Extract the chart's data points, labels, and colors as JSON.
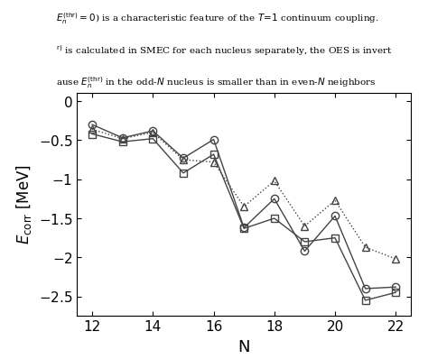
{
  "title": "",
  "xlabel": "N",
  "ylabel": "$E_{\\mathrm{corr}}$\\ [MeV]",
  "xlim": [
    11.5,
    22.5
  ],
  "ylim": [
    -2.75,
    0.1
  ],
  "yticks": [
    0,
    -0.5,
    -1.0,
    -1.5,
    -2.0,
    -2.5
  ],
  "ytick_labels": [
    "$0$",
    "$-0.5$",
    "$-1$",
    "$-1.5$",
    "$-2$",
    "$-2.5$"
  ],
  "xticks": [
    12,
    14,
    16,
    18,
    20,
    22
  ],
  "series_circle": {
    "x": [
      12,
      13,
      14,
      15,
      16,
      17,
      18,
      19,
      20,
      21,
      22
    ],
    "y": [
      -0.3,
      -0.47,
      -0.38,
      -0.73,
      -0.49,
      -1.62,
      -1.25,
      -1.92,
      -1.47,
      -2.4,
      -2.38
    ],
    "marker": "o",
    "linestyle": "-",
    "color": "#444444",
    "markersize": 6,
    "linewidth": 1.0,
    "fillstyle": "none"
  },
  "series_square": {
    "x": [
      12,
      13,
      14,
      15,
      16,
      17,
      18,
      19,
      20,
      21,
      22
    ],
    "y": [
      -0.42,
      -0.52,
      -0.48,
      -0.92,
      -0.68,
      -1.63,
      -1.5,
      -1.8,
      -1.75,
      -2.55,
      -2.45
    ],
    "marker": "s",
    "linestyle": "-",
    "color": "#444444",
    "markersize": 6,
    "linewidth": 1.0,
    "fillstyle": "none"
  },
  "series_triangle": {
    "x": [
      12,
      13,
      14,
      15,
      16,
      17,
      18,
      19,
      20,
      21,
      22
    ],
    "y": [
      -0.36,
      -0.48,
      -0.4,
      -0.75,
      -0.78,
      -1.35,
      -1.02,
      -1.6,
      -1.27,
      -1.87,
      -2.02
    ],
    "marker": "^",
    "linestyle": ":",
    "color": "#444444",
    "markersize": 6,
    "linewidth": 1.0,
    "fillstyle": "none"
  },
  "background_color": "#ffffff",
  "top_text_lines": [
    "$E_n^{\\rm (thr)} = 0$) is a characteristic feature of the $T\\!=\\!1$ continuum coupling.",
    "$^{\\rm r)}$ is calculated in SMEC for each nucleus separately, the OES is invert",
    "ause $E_n^{\\rm (thr)}$ in the odd-$N$ nucleus is smaller than in even-$N$ neighbors"
  ],
  "grid": false
}
